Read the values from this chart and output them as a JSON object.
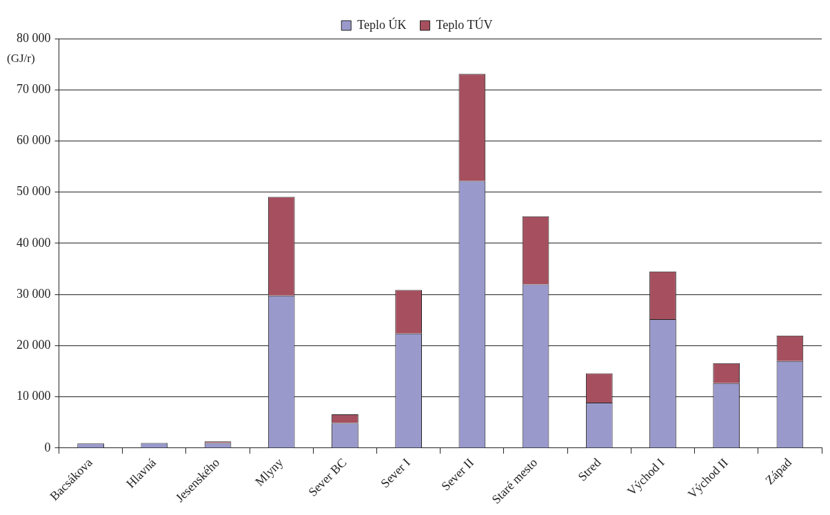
{
  "chart_data": {
    "type": "bar",
    "stacked": true,
    "ylabel": "(GJ/r)",
    "categories": [
      "Bacsákova",
      "Hlavná",
      "Jesenského",
      "Mlyny",
      "Sever BC",
      "Sever I",
      "Sever II",
      "Staré mesto",
      "Stred",
      "Východ I",
      "Východ II",
      "Západ"
    ],
    "series": [
      {
        "name": "Teplo ÚK",
        "color": "#9999cc",
        "values": [
          900,
          1000,
          1000,
          29800,
          4900,
          22400,
          52200,
          32000,
          8900,
          25200,
          12700,
          17000
        ]
      },
      {
        "name": "Teplo TÚV",
        "color": "#a6505f",
        "values": [
          0,
          0,
          300,
          19300,
          1700,
          8500,
          20900,
          13300,
          5700,
          9300,
          3900,
          5000
        ]
      }
    ],
    "ylim": [
      0,
      80000
    ],
    "yticks": [
      {
        "value": 0,
        "label": "0"
      },
      {
        "value": 10000,
        "label": "10 000"
      },
      {
        "value": 20000,
        "label": "20 000"
      },
      {
        "value": 30000,
        "label": "30 000"
      },
      {
        "value": 40000,
        "label": "40 000"
      },
      {
        "value": 50000,
        "label": "50 000"
      },
      {
        "value": 60000,
        "label": "60 000"
      },
      {
        "value": 70000,
        "label": "70 000"
      },
      {
        "value": 80000,
        "label": "80 000"
      }
    ],
    "grid": "y",
    "legend": "top"
  }
}
